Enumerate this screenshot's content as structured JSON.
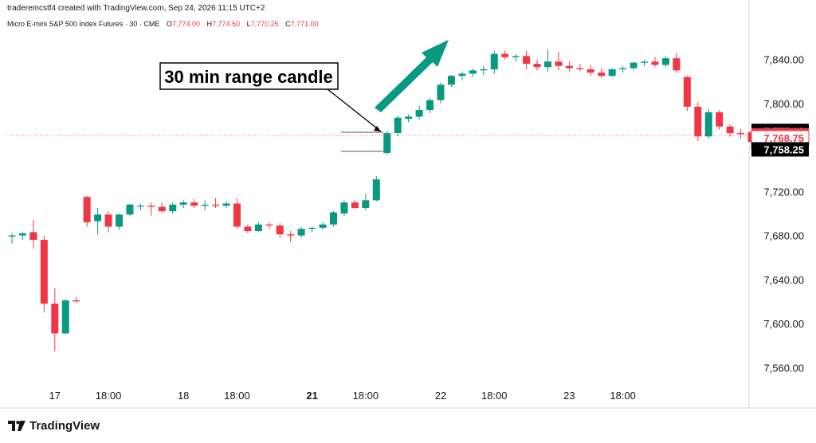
{
  "header": {
    "credit": "traderemcstf4 created with TradingView.com, Sep 24, 2026 11:15 UTC+2"
  },
  "symbol_line": {
    "name": "Micro E-mini S&P 500 Index Futures · 30 · CME",
    "open_label": "O",
    "open_value": "7,774.00",
    "high_label": "H",
    "high_value": "7,774.50",
    "low_label": "L",
    "low_value": "7,770.25",
    "close_label": "C",
    "close_value": "7,771.00"
  },
  "footer": {
    "brand": "TradingView"
  },
  "colors": {
    "up": "#089981",
    "down": "#f23645",
    "text": "#131722",
    "axis": "#d1d4dc"
  },
  "chart_data": {
    "type": "candlestick",
    "ylim": [
      7545,
      7865
    ],
    "y_ticks": [
      "7,560.00",
      "7,600.00",
      "7,640.00",
      "7,680.00",
      "7,720.00",
      "7,760.00",
      "7,800.00",
      "7,840.00"
    ],
    "x_ticks": [
      {
        "label": "17",
        "bar": 4,
        "bold": false
      },
      {
        "label": "18:00",
        "bar": 9,
        "bold": false
      },
      {
        "label": "18",
        "bar": 16,
        "bold": false
      },
      {
        "label": "18:00",
        "bar": 21,
        "bold": false
      },
      {
        "label": "21",
        "bar": 28,
        "bold": true
      },
      {
        "label": "18:00",
        "bar": 33,
        "bold": false
      },
      {
        "label": "22",
        "bar": 40,
        "bold": false
      },
      {
        "label": "18:00",
        "bar": 45,
        "bold": false
      },
      {
        "label": "23",
        "bar": 52,
        "bold": false
      },
      {
        "label": "18:00",
        "bar": 57,
        "bold": false
      }
    ],
    "price_labels": [
      {
        "text": "7,775.00",
        "value": 7775.0,
        "style": "black"
      },
      {
        "text": "7,771.00",
        "value": 7771.0,
        "style": "red"
      },
      {
        "text": "7,768.75",
        "value": 7768.75,
        "style": "outline"
      },
      {
        "text": "7,758.25",
        "value": 7758.25,
        "style": "black"
      }
    ],
    "current_price": 7771.0,
    "candles": [
      {
        "o": 7679,
        "h": 7682,
        "l": 7673,
        "c": 7680
      },
      {
        "o": 7680,
        "h": 7683,
        "l": 7676,
        "c": 7682
      },
      {
        "o": 7683,
        "h": 7694,
        "l": 7668,
        "c": 7676
      },
      {
        "o": 7676,
        "h": 7680,
        "l": 7610,
        "c": 7618
      },
      {
        "o": 7618,
        "h": 7632,
        "l": 7575,
        "c": 7591
      },
      {
        "o": 7591,
        "h": 7622,
        "l": 7590,
        "c": 7621
      },
      {
        "o": 7621,
        "h": 7624,
        "l": 7619,
        "c": 7620
      },
      {
        "o": 7715,
        "h": 7716,
        "l": 7688,
        "c": 7692
      },
      {
        "o": 7693,
        "h": 7705,
        "l": 7681,
        "c": 7699
      },
      {
        "o": 7699,
        "h": 7702,
        "l": 7683,
        "c": 7688
      },
      {
        "o": 7688,
        "h": 7700,
        "l": 7685,
        "c": 7699
      },
      {
        "o": 7699,
        "h": 7709,
        "l": 7698,
        "c": 7708
      },
      {
        "o": 7707,
        "h": 7709,
        "l": 7703,
        "c": 7707
      },
      {
        "o": 7707,
        "h": 7710,
        "l": 7698,
        "c": 7706
      },
      {
        "o": 7706,
        "h": 7710,
        "l": 7700,
        "c": 7702
      },
      {
        "o": 7702,
        "h": 7710,
        "l": 7700,
        "c": 7708
      },
      {
        "o": 7708,
        "h": 7712,
        "l": 7705,
        "c": 7710
      },
      {
        "o": 7710,
        "h": 7713,
        "l": 7705,
        "c": 7707
      },
      {
        "o": 7707,
        "h": 7712,
        "l": 7703,
        "c": 7708
      },
      {
        "o": 7708,
        "h": 7714,
        "l": 7705,
        "c": 7707
      },
      {
        "o": 7707,
        "h": 7711,
        "l": 7705,
        "c": 7709
      },
      {
        "o": 7709,
        "h": 7714,
        "l": 7686,
        "c": 7688
      },
      {
        "o": 7688,
        "h": 7690,
        "l": 7682,
        "c": 7684
      },
      {
        "o": 7684,
        "h": 7692,
        "l": 7683,
        "c": 7690
      },
      {
        "o": 7690,
        "h": 7692,
        "l": 7686,
        "c": 7689
      },
      {
        "o": 7689,
        "h": 7691,
        "l": 7678,
        "c": 7681
      },
      {
        "o": 7681,
        "h": 7684,
        "l": 7674,
        "c": 7680
      },
      {
        "o": 7680,
        "h": 7688,
        "l": 7678,
        "c": 7686
      },
      {
        "o": 7686,
        "h": 7688,
        "l": 7683,
        "c": 7687
      },
      {
        "o": 7687,
        "h": 7692,
        "l": 7685,
        "c": 7690
      },
      {
        "o": 7690,
        "h": 7702,
        "l": 7688,
        "c": 7701
      },
      {
        "o": 7700,
        "h": 7712,
        "l": 7698,
        "c": 7710
      },
      {
        "o": 7710,
        "h": 7712,
        "l": 7704,
        "c": 7705
      },
      {
        "o": 7705,
        "h": 7718,
        "l": 7703,
        "c": 7712
      },
      {
        "o": 7712,
        "h": 7734,
        "l": 7711,
        "c": 7731
      },
      {
        "o": 7755,
        "h": 7775,
        "l": 7753,
        "c": 7773
      },
      {
        "o": 7773,
        "h": 7789,
        "l": 7770,
        "c": 7787
      },
      {
        "o": 7786,
        "h": 7790,
        "l": 7783,
        "c": 7788
      },
      {
        "o": 7788,
        "h": 7798,
        "l": 7785,
        "c": 7794
      },
      {
        "o": 7794,
        "h": 7805,
        "l": 7791,
        "c": 7803
      },
      {
        "o": 7803,
        "h": 7819,
        "l": 7800,
        "c": 7817
      },
      {
        "o": 7817,
        "h": 7826,
        "l": 7815,
        "c": 7825
      },
      {
        "o": 7825,
        "h": 7829,
        "l": 7821,
        "c": 7827
      },
      {
        "o": 7827,
        "h": 7832,
        "l": 7824,
        "c": 7830
      },
      {
        "o": 7830,
        "h": 7834,
        "l": 7826,
        "c": 7831
      },
      {
        "o": 7831,
        "h": 7848,
        "l": 7827,
        "c": 7845
      },
      {
        "o": 7845,
        "h": 7848,
        "l": 7840,
        "c": 7842
      },
      {
        "o": 7842,
        "h": 7845,
        "l": 7838,
        "c": 7843
      },
      {
        "o": 7843,
        "h": 7848,
        "l": 7831,
        "c": 7836
      },
      {
        "o": 7836,
        "h": 7840,
        "l": 7830,
        "c": 7833
      },
      {
        "o": 7833,
        "h": 7849,
        "l": 7829,
        "c": 7838
      },
      {
        "o": 7838,
        "h": 7847,
        "l": 7830,
        "c": 7834
      },
      {
        "o": 7834,
        "h": 7838,
        "l": 7829,
        "c": 7832
      },
      {
        "o": 7832,
        "h": 7836,
        "l": 7829,
        "c": 7831
      }
    ],
    "extra_candles_note": "",
    "candles_b": [
      {
        "o": 7831,
        "h": 7835,
        "l": 7825,
        "c": 7828
      },
      {
        "o": 7828,
        "h": 7832,
        "l": 7823,
        "c": 7825
      },
      {
        "o": 7825,
        "h": 7832,
        "l": 7824,
        "c": 7831
      },
      {
        "o": 7831,
        "h": 7834,
        "l": 7828,
        "c": 7832
      },
      {
        "o": 7832,
        "h": 7838,
        "l": 7830,
        "c": 7837
      },
      {
        "o": 7837,
        "h": 7840,
        "l": 7834,
        "c": 7838
      },
      {
        "o": 7838,
        "h": 7842,
        "l": 7833,
        "c": 7835
      },
      {
        "o": 7835,
        "h": 7843,
        "l": 7833,
        "c": 7841
      },
      {
        "o": 7841,
        "h": 7846,
        "l": 7828,
        "c": 7830
      },
      {
        "o": 7824,
        "h": 7825,
        "l": 7793,
        "c": 7797
      },
      {
        "o": 7797,
        "h": 7801,
        "l": 7766,
        "c": 7770
      },
      {
        "o": 7770,
        "h": 7795,
        "l": 7768,
        "c": 7792
      },
      {
        "o": 7792,
        "h": 7794,
        "l": 7776,
        "c": 7779
      },
      {
        "o": 7779,
        "h": 7781,
        "l": 7770,
        "c": 7773
      },
      {
        "o": 7773,
        "h": 7777,
        "l": 7768,
        "c": 7772
      },
      {
        "o": 7774,
        "h": 7775,
        "l": 7758,
        "c": 7765
      }
    ],
    "annotations": [
      {
        "type": "text-box",
        "text": "30 min range candle"
      },
      {
        "type": "arrow",
        "direction": "up",
        "color": "#089981"
      }
    ]
  }
}
